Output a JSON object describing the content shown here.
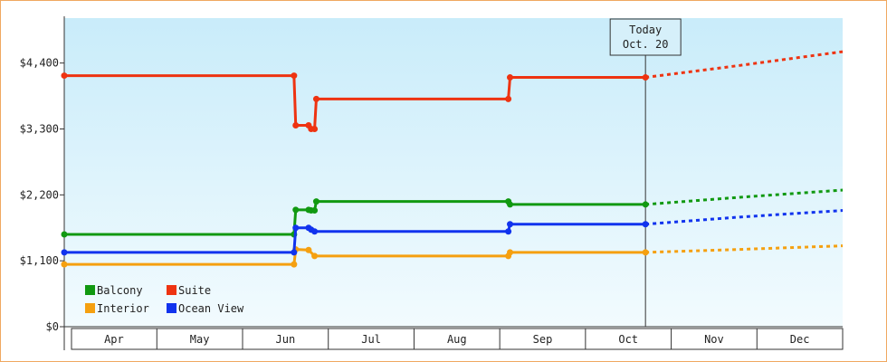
{
  "chart_data": {
    "type": "line",
    "categories": [
      "Apr",
      "May",
      "Jun",
      "Jul",
      "Aug",
      "Sep",
      "Oct",
      "Nov",
      "Dec"
    ],
    "xlim": [
      -0.08,
      9
    ],
    "ylim": [
      0,
      5150
    ],
    "yticks": [
      {
        "value": 0,
        "label": "$0"
      },
      {
        "value": 1100,
        "label": "$1,100"
      },
      {
        "value": 2200,
        "label": "$2,200"
      },
      {
        "value": 3300,
        "label": "$3,300"
      },
      {
        "value": 4400,
        "label": "$4,400"
      }
    ],
    "annotation": {
      "x": 6.7,
      "lines": [
        "Today",
        "Oct. 20"
      ]
    },
    "series": [
      {
        "name": "Balcony",
        "color": "#119911",
        "x": [
          -0.08,
          2.6,
          2.62,
          2.77,
          2.8,
          2.84,
          2.86,
          5.1,
          5.12,
          6.7
        ],
        "values": [
          1540,
          1540,
          1950,
          1950,
          1940,
          1940,
          2090,
          2090,
          2040,
          2040
        ],
        "forecast": {
          "x": [
            6.7,
            7.8,
            9
          ],
          "values": [
            2040,
            2160,
            2280
          ]
        }
      },
      {
        "name": "Suite",
        "color": "#ee3311",
        "x": [
          -0.08,
          2.6,
          2.62,
          2.77,
          2.8,
          2.84,
          2.86,
          5.1,
          5.12,
          6.7
        ],
        "values": [
          4190,
          4190,
          3360,
          3360,
          3300,
          3300,
          3800,
          3800,
          4160,
          4160
        ],
        "forecast": {
          "x": [
            6.7,
            7.8,
            9
          ],
          "values": [
            4160,
            4360,
            4590
          ]
        }
      },
      {
        "name": "Interior",
        "color": "#f5a010",
        "x": [
          -0.08,
          2.6,
          2.62,
          2.77,
          2.84,
          5.1,
          5.12,
          6.7
        ],
        "values": [
          1040,
          1040,
          1290,
          1280,
          1180,
          1180,
          1240,
          1240
        ],
        "forecast": {
          "x": [
            6.7,
            7.8,
            9
          ],
          "values": [
            1240,
            1290,
            1350
          ]
        }
      },
      {
        "name": "Ocean View",
        "color": "#1133ee",
        "x": [
          -0.08,
          2.6,
          2.62,
          2.77,
          2.8,
          2.84,
          5.1,
          5.12,
          6.7
        ],
        "values": [
          1240,
          1240,
          1650,
          1650,
          1620,
          1590,
          1590,
          1710,
          1710
        ],
        "forecast": {
          "x": [
            6.7,
            7.8,
            9
          ],
          "values": [
            1710,
            1830,
            1940
          ]
        }
      }
    ]
  }
}
